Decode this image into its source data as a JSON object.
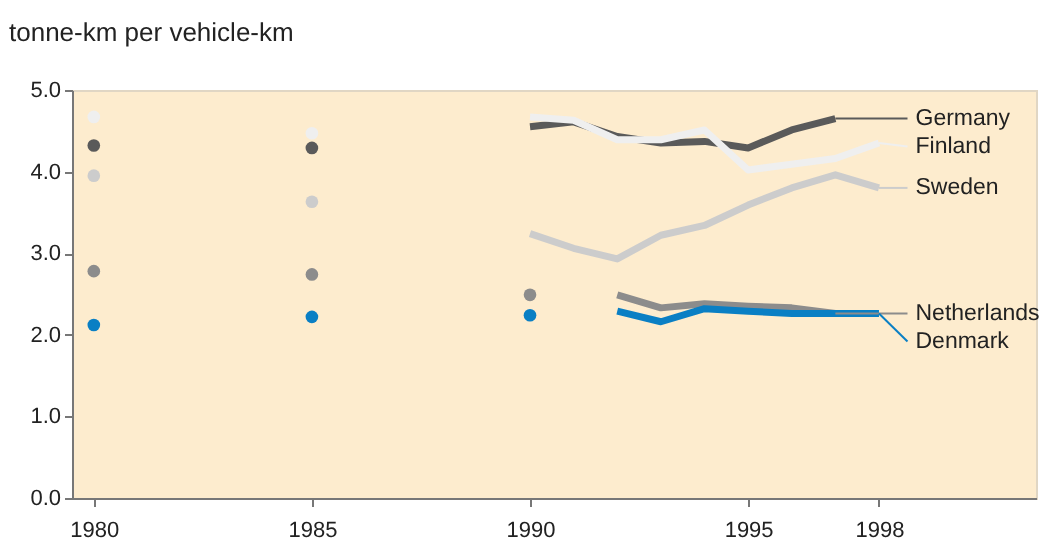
{
  "chart_data": {
    "type": "line",
    "ylabel": "tonne-km per vehicle-km",
    "xlim": [
      1979.5,
      2001.6
    ],
    "ylim": [
      0,
      5
    ],
    "xticks": [
      1980,
      1985,
      1990,
      1995,
      1998
    ],
    "yticks": [
      {
        "value": 0,
        "label": "0.0"
      },
      {
        "value": 1,
        "label": "1.0"
      },
      {
        "value": 2,
        "label": "2.0"
      },
      {
        "value": 3,
        "label": "3.0"
      },
      {
        "value": 4,
        "label": "4.0"
      },
      {
        "value": 5,
        "label": "5.0"
      }
    ],
    "legend": "right",
    "grid": false,
    "line_style": "solid",
    "series": [
      {
        "type": "scatter",
        "marker": "circle",
        "color": "#5a5a5a",
        "x": [
          1980,
          1985
        ],
        "values": [
          4.32,
          4.29
        ]
      },
      {
        "type": "scatter",
        "marker": "circle",
        "color": "#efefef",
        "x": [
          1980,
          1985
        ],
        "values": [
          4.67,
          4.47
        ]
      },
      {
        "type": "scatter",
        "marker": "circle",
        "color": "#cccccc",
        "x": [
          1980,
          1985
        ],
        "values": [
          3.95,
          3.63
        ]
      },
      {
        "type": "scatter",
        "marker": "circle",
        "color": "#8c8c8c",
        "x": [
          1980,
          1985,
          1990
        ],
        "values": [
          2.78,
          2.74,
          2.49
        ]
      },
      {
        "type": "scatter",
        "marker": "circle",
        "color": "#0a7fc4",
        "x": [
          1980,
          1985,
          1990
        ],
        "values": [
          2.12,
          2.22,
          2.24
        ]
      },
      {
        "name": "Germany",
        "color": "#5a5a5a",
        "x": [
          1990,
          1991,
          1992,
          1993,
          1994,
          1995,
          1996,
          1997
        ],
        "values": [
          4.55,
          4.61,
          4.43,
          4.35,
          4.37,
          4.29,
          4.51,
          4.65
        ]
      },
      {
        "name": "Finland",
        "color": "#efefef",
        "x": [
          1990,
          1991,
          1992,
          1993,
          1994,
          1995,
          1996,
          1997,
          1998
        ],
        "values": [
          4.67,
          4.63,
          4.39,
          4.39,
          4.51,
          4.02,
          4.09,
          4.16,
          4.35
        ]
      },
      {
        "name": "Sweden",
        "color": "#cccccc",
        "x": [
          1990,
          1991,
          1992,
          1993,
          1994,
          1995,
          1996,
          1997,
          1998
        ],
        "values": [
          3.24,
          3.06,
          2.93,
          3.22,
          3.34,
          3.59,
          3.8,
          3.96,
          3.8
        ]
      },
      {
        "name": "Netherlands",
        "color": "#8c8c8c",
        "x": [
          1992,
          1993,
          1994,
          1995,
          1996,
          1997
        ],
        "values": [
          2.49,
          2.33,
          2.38,
          2.35,
          2.33,
          2.26
        ]
      },
      {
        "name": "Denmark",
        "color": "#0a7fc4",
        "x": [
          1992,
          1993,
          1994,
          1995,
          1996,
          1997,
          1998
        ],
        "values": [
          2.29,
          2.16,
          2.32,
          2.29,
          2.26,
          2.26,
          2.26
        ]
      }
    ]
  }
}
